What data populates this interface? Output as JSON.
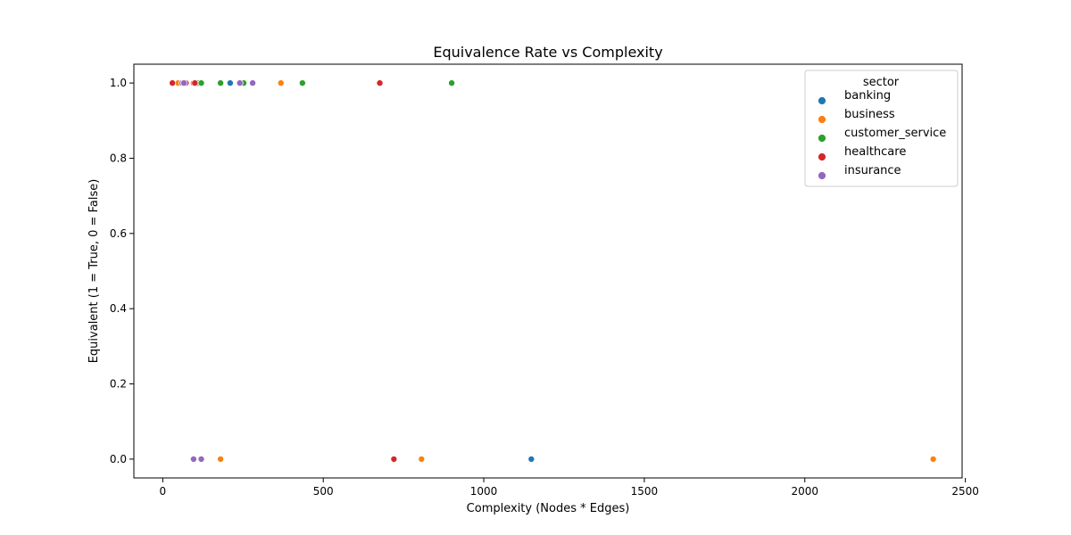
{
  "chart_data": {
    "type": "scatter",
    "title": "Equivalence Rate vs Complexity",
    "xlabel": "Complexity (Nodes * Edges)",
    "ylabel": "Equivalent (1 = True, 0 = False)",
    "xlim": [
      -90,
      2490
    ],
    "ylim": [
      -0.05,
      1.05
    ],
    "xticks": [
      0,
      500,
      1000,
      1500,
      2000,
      2500
    ],
    "yticks": [
      0.0,
      0.2,
      0.4,
      0.6,
      0.8,
      1.0
    ],
    "xtick_labels": [
      "0",
      "500",
      "1000",
      "1500",
      "2000",
      "2500"
    ],
    "ytick_labels": [
      "0.0",
      "0.2",
      "0.4",
      "0.6",
      "0.8",
      "1.0"
    ],
    "legend_title": "sector",
    "legend_position": "top-right",
    "series": [
      {
        "name": "banking",
        "color": "#1f77b4",
        "points": [
          [
            210,
            1
          ],
          [
            1148,
            0
          ]
        ]
      },
      {
        "name": "business",
        "color": "#ff7f0e",
        "points": [
          [
            48,
            1
          ],
          [
            368,
            1
          ],
          [
            180,
            0
          ],
          [
            806,
            0
          ],
          [
            2400,
            0
          ]
        ]
      },
      {
        "name": "customer_service",
        "color": "#2ca02c",
        "points": [
          [
            110,
            1
          ],
          [
            120,
            1
          ],
          [
            180,
            1
          ],
          [
            252,
            1
          ],
          [
            435,
            1
          ],
          [
            900,
            1
          ]
        ]
      },
      {
        "name": "healthcare",
        "color": "#d62728",
        "points": [
          [
            30,
            1
          ],
          [
            72,
            1
          ],
          [
            96,
            1
          ],
          [
            100,
            1
          ],
          [
            676,
            1
          ],
          [
            720,
            0
          ]
        ]
      },
      {
        "name": "insurance",
        "color": "#9467bd",
        "points": [
          [
            60,
            1
          ],
          [
            66,
            1
          ],
          [
            240,
            1
          ],
          [
            280,
            1
          ],
          [
            96,
            0
          ],
          [
            120,
            0
          ]
        ]
      }
    ]
  }
}
